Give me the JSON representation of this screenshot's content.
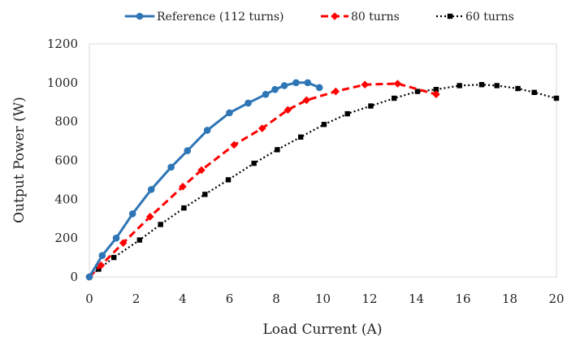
{
  "chart_data": {
    "type": "line",
    "title": "",
    "xlabel": "Load Current (A)",
    "ylabel": "Output Power (W)",
    "xlim": [
      0,
      20
    ],
    "ylim": [
      0,
      1200
    ],
    "xticks": [
      "0",
      "2",
      "4",
      "6",
      "8",
      "10",
      "12",
      "14",
      "16",
      "18",
      "20"
    ],
    "yticks": [
      "0",
      "200",
      "400",
      "600",
      "800",
      "1000",
      "1200"
    ],
    "grid": false,
    "legend_position": "top",
    "series": [
      {
        "name": "Reference (112 turns)",
        "color": "#2E75B6",
        "line_style": "solid",
        "marker": "circle",
        "x": [
          0,
          0.55,
          1.15,
          1.85,
          2.65,
          3.5,
          4.2,
          5.05,
          6.0,
          6.8,
          7.55,
          7.95,
          8.35,
          8.85,
          9.35,
          9.85
        ],
        "y": [
          0,
          110,
          200,
          325,
          450,
          565,
          650,
          755,
          845,
          895,
          940,
          965,
          985,
          1000,
          1000,
          975
        ]
      },
      {
        "name": "80 turns",
        "color": "#FF0000",
        "line_style": "dashed",
        "marker": "diamond",
        "x": [
          0,
          0.5,
          1.45,
          2.6,
          4.0,
          4.8,
          6.2,
          7.4,
          8.5,
          9.3,
          10.55,
          11.8,
          13.2,
          14.85
        ],
        "y": [
          0,
          60,
          175,
          310,
          465,
          550,
          680,
          765,
          860,
          910,
          955,
          990,
          995,
          940
        ]
      },
      {
        "name": "60 turns",
        "color": "#000000",
        "line_style": "dotted",
        "marker": "square",
        "x": [
          0,
          0.4,
          1.05,
          2.15,
          3.05,
          4.05,
          4.95,
          5.95,
          7.05,
          8.05,
          9.05,
          10.05,
          11.05,
          12.05,
          13.05,
          14.05,
          14.85,
          15.85,
          16.8,
          17.45,
          18.35,
          19.05,
          20.0
        ],
        "y": [
          0,
          40,
          100,
          190,
          270,
          355,
          425,
          500,
          585,
          655,
          720,
          785,
          840,
          880,
          920,
          955,
          965,
          985,
          990,
          985,
          970,
          950,
          920
        ]
      }
    ]
  }
}
